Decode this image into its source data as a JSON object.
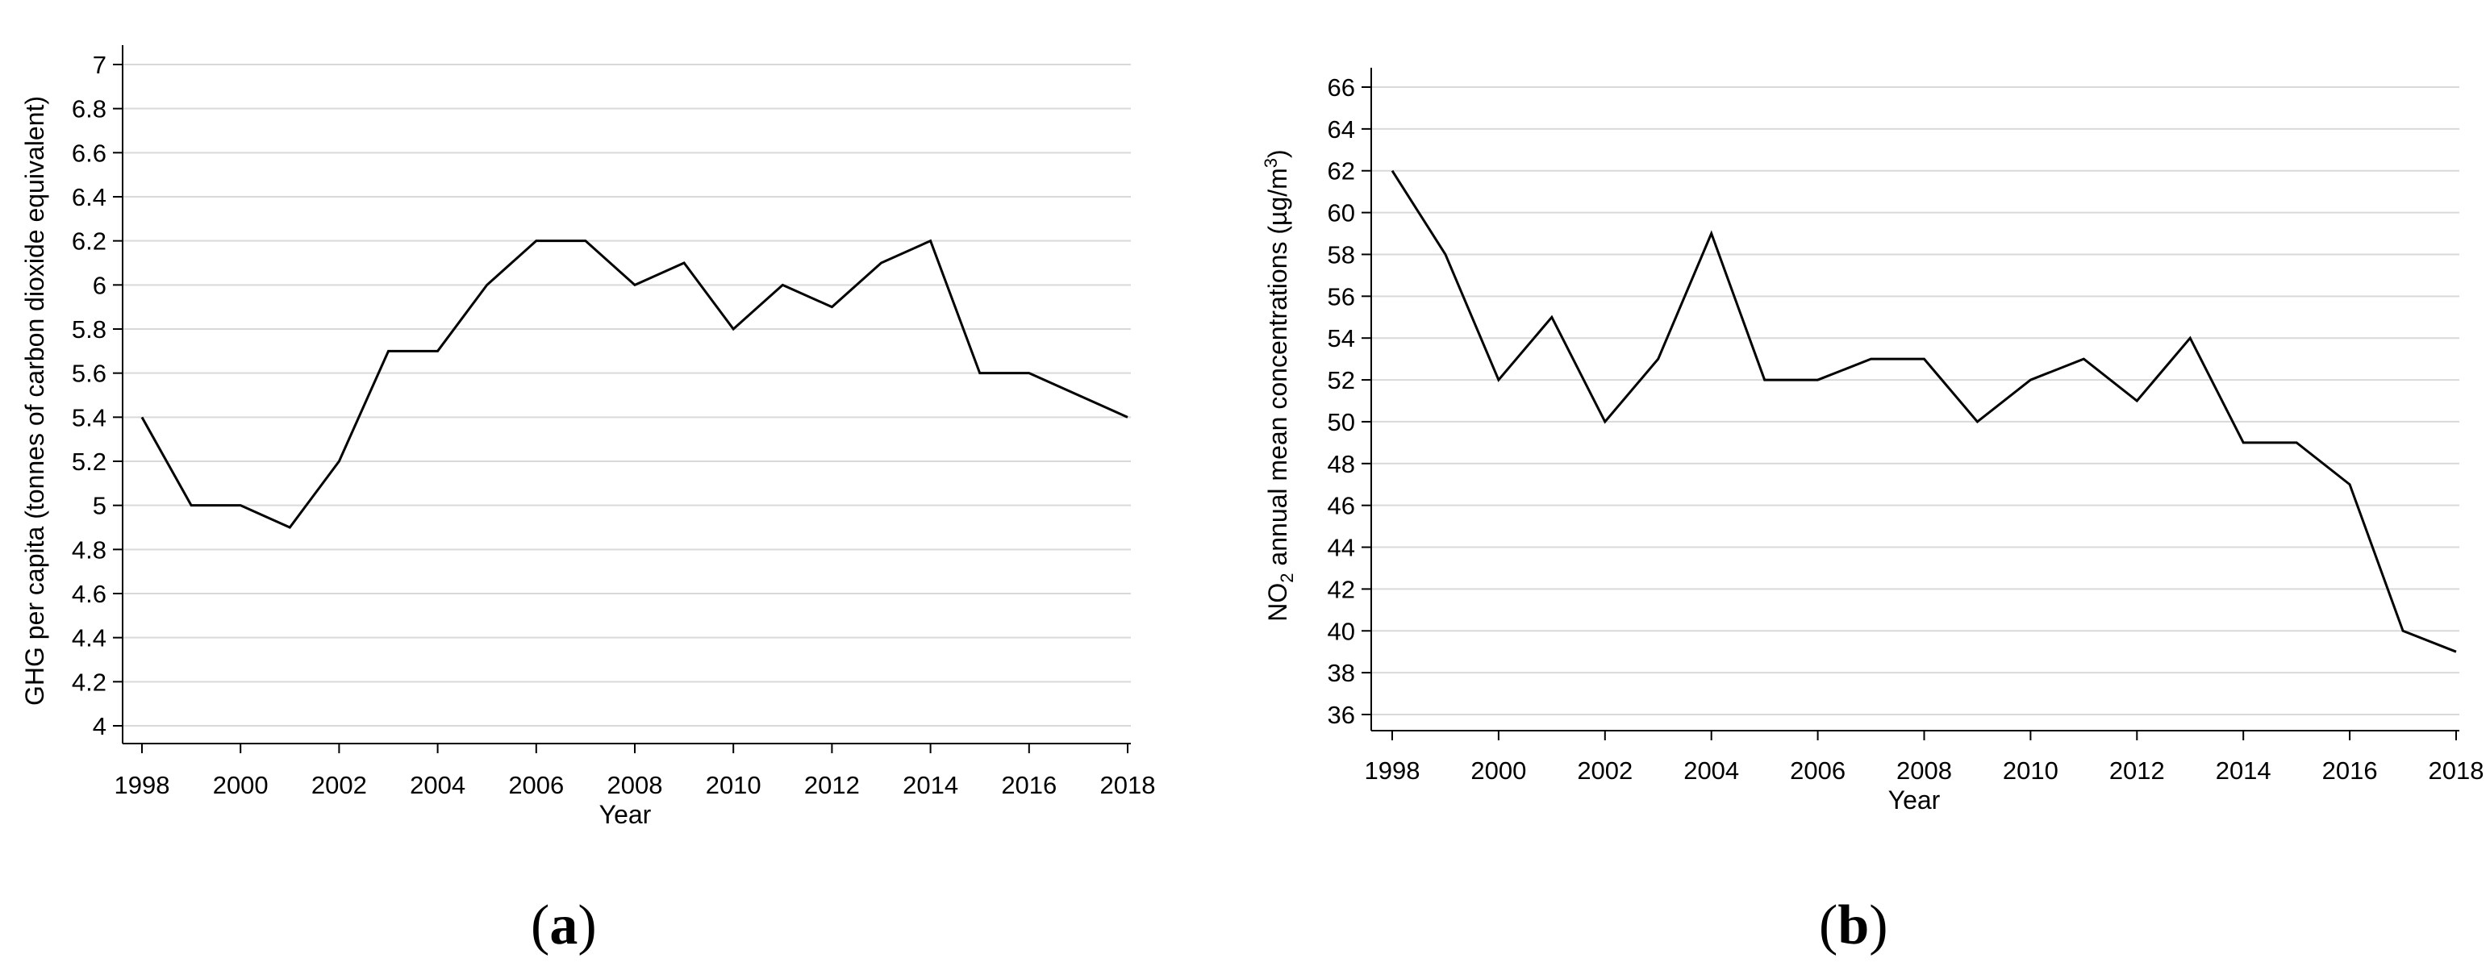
{
  "colors": {
    "line": "#000000",
    "grid": "#d9d9d9",
    "axis": "#000000",
    "background": "#ffffff"
  },
  "panels": [
    {
      "label_open": "(",
      "label_letter": "a",
      "label_close": ")"
    },
    {
      "label_open": "(",
      "label_letter": "b",
      "label_close": ")"
    }
  ],
  "chart_data": [
    {
      "type": "line",
      "title": "",
      "xlabel": "Year",
      "ylabel": "GHG per capita (tonnes of carbon dioxide equivalent)",
      "x": [
        1998,
        1999,
        2000,
        2001,
        2002,
        2003,
        2004,
        2005,
        2006,
        2007,
        2008,
        2009,
        2010,
        2011,
        2012,
        2013,
        2014,
        2015,
        2016,
        2017,
        2018
      ],
      "series": [
        {
          "name": "GHG per capita",
          "values": [
            5.4,
            5.0,
            5.0,
            4.9,
            5.2,
            5.7,
            5.7,
            6.0,
            6.2,
            6.2,
            6.0,
            6.1,
            5.8,
            6.0,
            5.9,
            6.1,
            6.2,
            5.6,
            5.6,
            5.5,
            5.4
          ]
        }
      ],
      "xlim": [
        1998,
        2018
      ],
      "ylim": [
        4,
        7
      ],
      "xticks": [
        "1998",
        "2000",
        "2002",
        "2004",
        "2006",
        "2008",
        "2010",
        "2012",
        "2014",
        "2016",
        "2018"
      ],
      "yticks": [
        "4",
        "4.2",
        "4.4",
        "4.6",
        "4.8",
        "5",
        "5.2",
        "5.4",
        "5.6",
        "5.8",
        "6",
        "6.2",
        "6.4",
        "6.6",
        "6.8",
        "7"
      ],
      "grid": true
    },
    {
      "type": "line",
      "title": "",
      "xlabel": "Year",
      "ylabel_main": "NO",
      "ylabel_sub": "2",
      "ylabel_rest": " annual mean concentrations (µg/m",
      "ylabel_sup": "3",
      "ylabel_end": ")",
      "x": [
        1998,
        1999,
        2000,
        2001,
        2002,
        2003,
        2004,
        2005,
        2006,
        2007,
        2008,
        2009,
        2010,
        2011,
        2012,
        2013,
        2014,
        2015,
        2016,
        2017,
        2018
      ],
      "series": [
        {
          "name": "NO2 annual mean",
          "values": [
            62,
            58,
            52,
            55,
            50,
            53,
            59,
            52,
            52,
            53,
            53,
            50,
            52,
            53,
            51,
            54,
            49,
            49,
            47,
            40,
            39
          ]
        }
      ],
      "xlim": [
        1998,
        2018
      ],
      "ylim": [
        36,
        66
      ],
      "xticks": [
        "1998",
        "2000",
        "2002",
        "2004",
        "2006",
        "2008",
        "2010",
        "2012",
        "2014",
        "2016",
        "2018"
      ],
      "yticks": [
        "36",
        "38",
        "40",
        "42",
        "44",
        "46",
        "48",
        "50",
        "52",
        "54",
        "56",
        "58",
        "60",
        "62",
        "64",
        "66"
      ],
      "grid": true
    }
  ]
}
